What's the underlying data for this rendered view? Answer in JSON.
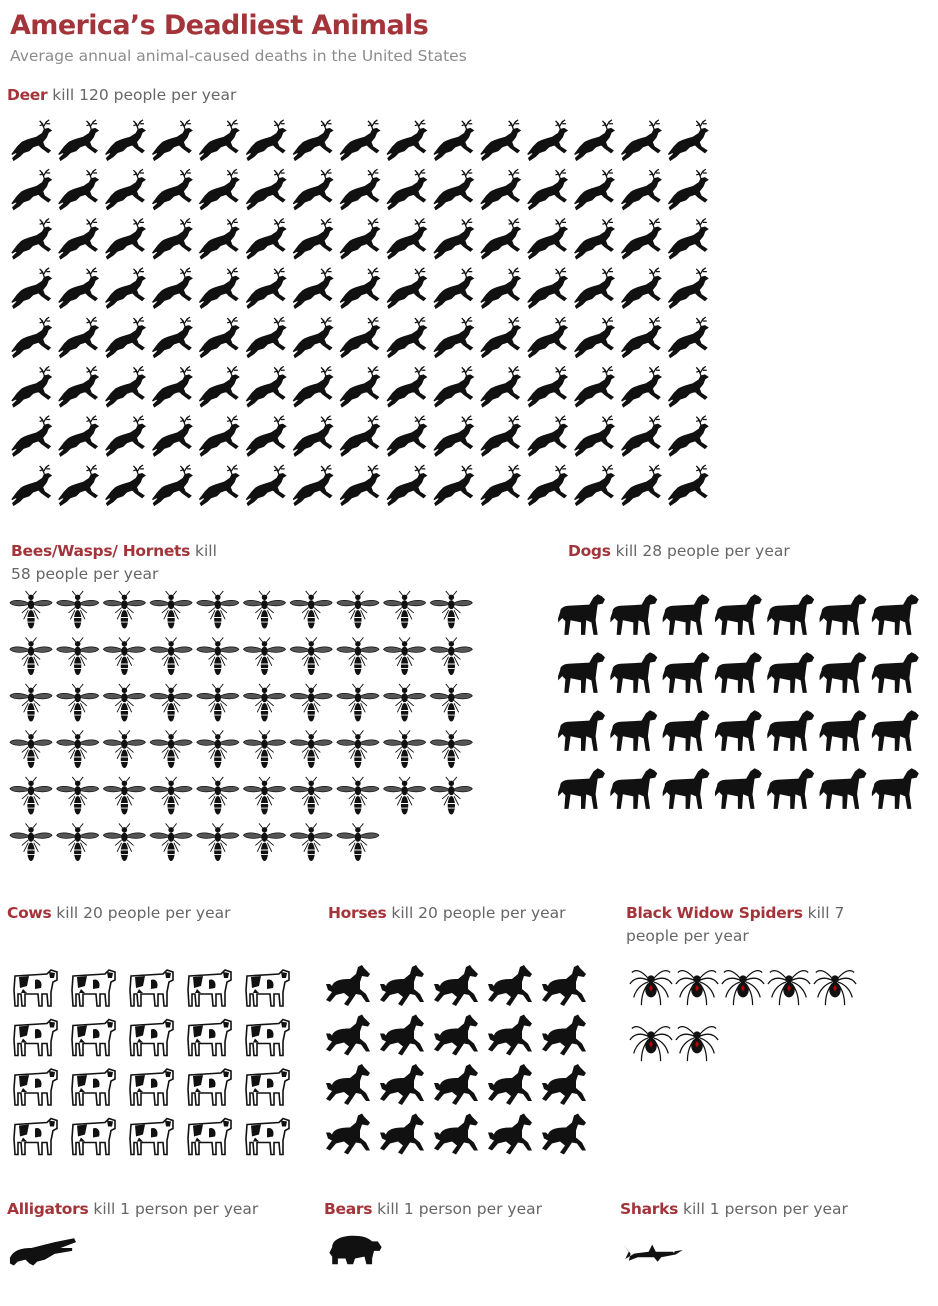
{
  "title": "America’s Deadliest Animals",
  "subtitle": "Average annual animal-caused deaths in the United States",
  "chart_data": {
    "type": "pictograph",
    "unit": "1 icon = 1 death per year",
    "series": [
      {
        "name": "Deer",
        "label_rest": " kill 120 people per year",
        "value": 120,
        "icon": "deer-icon"
      },
      {
        "name": "Bees/Wasps/ Hornets",
        "label_rest": " kill 58 people per year",
        "value": 58,
        "icon": "wasp-icon"
      },
      {
        "name": "Dogs",
        "label_rest": " kill 28 people per year",
        "value": 28,
        "icon": "dog-icon"
      },
      {
        "name": "Cows",
        "label_rest": " kill 20 people per year",
        "value": 20,
        "icon": "cow-icon"
      },
      {
        "name": "Horses",
        "label_rest": " kill 20 people per year",
        "value": 20,
        "icon": "horse-icon"
      },
      {
        "name": "Black Widow Spiders",
        "label_rest": " kill 7 people per year",
        "value": 7,
        "icon": "spider-icon"
      },
      {
        "name": "Alligators",
        "label_rest": " kill 1 person per year",
        "value": 1,
        "icon": "alligator-icon"
      },
      {
        "name": "Bears",
        "label_rest": " kill 1 person per year",
        "value": 1,
        "icon": "bear-icon"
      },
      {
        "name": "Sharks",
        "label_rest": " kill 1 person per year",
        "value": 1,
        "icon": "shark-icon"
      }
    ]
  }
}
